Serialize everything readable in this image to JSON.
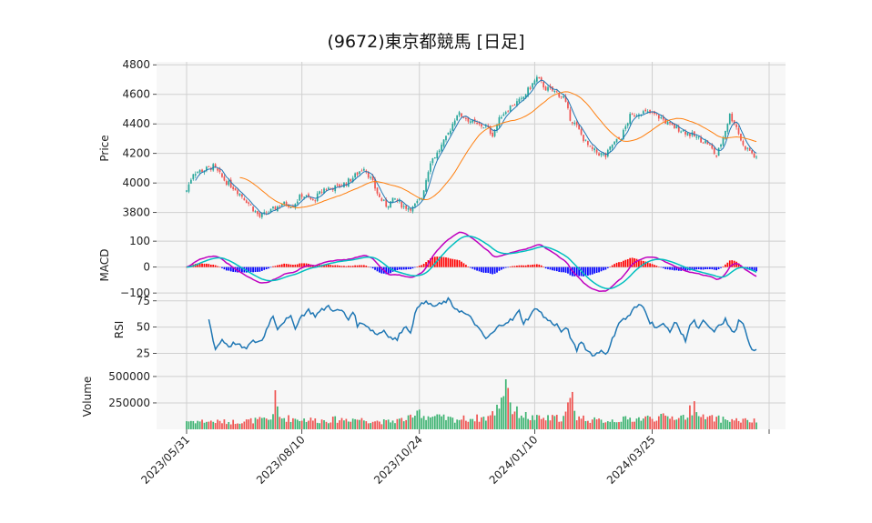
{
  "chart_data": {
    "type": "candlestick",
    "title": "(9672)東京都競馬 [日足]",
    "colors": {
      "up": "#26a69a",
      "down": "#ef5350",
      "sma_short": "#1f77b4",
      "sma_long": "#ff7f0e",
      "macd": "#bf00bf",
      "signal": "#00bfbf",
      "hist_pos": "#ff0000",
      "hist_neg": "#0000ff",
      "rsi": "#1f77b4",
      "panel_bg": "#f7f7f7",
      "grid": "#d0d0d0"
    },
    "x_ticks": [
      "2023/05/31",
      "2023/08/10",
      "2023/10/24",
      "2024/01/10",
      "2024/03/25"
    ],
    "panels": {
      "price": {
        "ylabel": "Price",
        "ylim": [
          3650,
          4820
        ],
        "ticks": [
          "3800",
          "4000",
          "4200",
          "4400",
          "4600",
          "4800"
        ]
      },
      "macd": {
        "ylabel": "MACD",
        "ylim": [
          -110,
          125
        ],
        "ticks": [
          "−100",
          "0",
          "100"
        ]
      },
      "rsi": {
        "ylabel": "RSI",
        "ylim": [
          15,
          80
        ],
        "ticks": [
          "25",
          "50",
          "75"
        ]
      },
      "volume": {
        "ylabel": "Volume",
        "ylim": [
          0,
          620000
        ],
        "ticks": [
          "250000",
          "500000"
        ]
      }
    },
    "close_anchors": [
      [
        0,
        3950
      ],
      [
        3,
        4070
      ],
      [
        8,
        4090
      ],
      [
        12,
        4110
      ],
      [
        17,
        4020
      ],
      [
        22,
        3960
      ],
      [
        27,
        3880
      ],
      [
        33,
        3770
      ],
      [
        38,
        3810
      ],
      [
        43,
        3860
      ],
      [
        48,
        3850
      ],
      [
        52,
        3920
      ],
      [
        57,
        3880
      ],
      [
        62,
        3960
      ],
      [
        67,
        3970
      ],
      [
        72,
        4000
      ],
      [
        76,
        4050
      ],
      [
        80,
        4110
      ],
      [
        84,
        4000
      ],
      [
        87,
        3900
      ],
      [
        90,
        3850
      ],
      [
        94,
        3890
      ],
      [
        98,
        3840
      ],
      [
        102,
        3830
      ],
      [
        106,
        3900
      ],
      [
        110,
        4150
      ],
      [
        113,
        4200
      ],
      [
        117,
        4300
      ],
      [
        122,
        4470
      ],
      [
        125,
        4450
      ],
      [
        130,
        4400
      ],
      [
        135,
        4380
      ],
      [
        138,
        4330
      ],
      [
        142,
        4460
      ],
      [
        147,
        4530
      ],
      [
        151,
        4560
      ],
      [
        155,
        4650
      ],
      [
        158,
        4710
      ],
      [
        162,
        4640
      ],
      [
        166,
        4620
      ],
      [
        170,
        4580
      ],
      [
        173,
        4440
      ],
      [
        176,
        4380
      ],
      [
        179,
        4300
      ],
      [
        182,
        4230
      ],
      [
        186,
        4200
      ],
      [
        189,
        4180
      ],
      [
        192,
        4260
      ],
      [
        196,
        4310
      ],
      [
        200,
        4450
      ],
      [
        205,
        4480
      ],
      [
        210,
        4470
      ],
      [
        214,
        4440
      ],
      [
        218,
        4390
      ],
      [
        223,
        4360
      ],
      [
        227,
        4330
      ],
      [
        231,
        4300
      ],
      [
        235,
        4270
      ],
      [
        239,
        4180
      ],
      [
        242,
        4310
      ],
      [
        245,
        4460
      ],
      [
        248,
        4380
      ],
      [
        251,
        4250
      ],
      [
        254,
        4220
      ],
      [
        257,
        4160
      ]
    ],
    "rsi_anchors": [
      [
        10,
        57
      ],
      [
        13,
        29
      ],
      [
        16,
        38
      ],
      [
        19,
        32
      ],
      [
        22,
        35
      ],
      [
        26,
        29
      ],
      [
        30,
        36
      ],
      [
        34,
        37
      ],
      [
        37,
        53
      ],
      [
        39,
        61
      ],
      [
        41,
        49
      ],
      [
        44,
        56
      ],
      [
        47,
        59
      ],
      [
        49,
        50
      ],
      [
        52,
        61
      ],
      [
        55,
        66
      ],
      [
        58,
        61
      ],
      [
        61,
        66
      ],
      [
        64,
        70
      ],
      [
        67,
        65
      ],
      [
        70,
        66
      ],
      [
        73,
        57
      ],
      [
        75,
        66
      ],
      [
        77,
        52
      ],
      [
        80,
        54
      ],
      [
        83,
        48
      ],
      [
        86,
        43
      ],
      [
        89,
        47
      ],
      [
        92,
        40
      ],
      [
        95,
        38
      ],
      [
        98,
        51
      ],
      [
        101,
        46
      ],
      [
        103,
        62
      ],
      [
        106,
        75
      ],
      [
        109,
        72
      ],
      [
        112,
        70
      ],
      [
        115,
        72
      ],
      [
        118,
        76
      ],
      [
        120,
        70
      ],
      [
        123,
        66
      ],
      [
        126,
        62
      ],
      [
        129,
        57
      ],
      [
        132,
        47
      ],
      [
        135,
        39
      ],
      [
        138,
        44
      ],
      [
        141,
        51
      ],
      [
        144,
        55
      ],
      [
        147,
        57
      ],
      [
        150,
        65
      ],
      [
        152,
        54
      ],
      [
        155,
        61
      ],
      [
        158,
        69
      ],
      [
        161,
        60
      ],
      [
        164,
        55
      ],
      [
        167,
        52
      ],
      [
        169,
        46
      ],
      [
        172,
        48
      ],
      [
        174,
        35
      ],
      [
        176,
        28
      ],
      [
        178,
        37
      ],
      [
        181,
        27
      ],
      [
        184,
        23
      ],
      [
        187,
        28
      ],
      [
        190,
        25
      ],
      [
        192,
        38
      ],
      [
        195,
        55
      ],
      [
        198,
        58
      ],
      [
        200,
        62
      ],
      [
        202,
        68
      ],
      [
        205,
        71
      ],
      [
        207,
        66
      ],
      [
        209,
        55
      ],
      [
        212,
        50
      ],
      [
        215,
        52
      ],
      [
        218,
        47
      ],
      [
        221,
        55
      ],
      [
        223,
        44
      ],
      [
        225,
        38
      ],
      [
        227,
        52
      ],
      [
        229,
        55
      ],
      [
        231,
        48
      ],
      [
        233,
        55
      ],
      [
        235,
        52
      ],
      [
        237,
        46
      ],
      [
        239,
        48
      ],
      [
        241,
        53
      ],
      [
        243,
        57
      ],
      [
        245,
        49
      ],
      [
        247,
        44
      ],
      [
        249,
        55
      ],
      [
        251,
        52
      ],
      [
        253,
        40
      ],
      [
        255,
        29
      ]
    ],
    "volume_anchors": [
      [
        0,
        80000
      ],
      [
        20,
        70000
      ],
      [
        38,
        95000
      ],
      [
        40,
        280000
      ],
      [
        42,
        110000
      ],
      [
        60,
        85000
      ],
      [
        75,
        100000
      ],
      [
        90,
        70000
      ],
      [
        103,
        110000
      ],
      [
        104,
        260000
      ],
      [
        106,
        130000
      ],
      [
        120,
        95000
      ],
      [
        135,
        110000
      ],
      [
        138,
        140000
      ],
      [
        140,
        200000
      ],
      [
        143,
        360000
      ],
      [
        144,
        560000
      ],
      [
        145,
        380000
      ],
      [
        147,
        180000
      ],
      [
        155,
        110000
      ],
      [
        160,
        100000
      ],
      [
        170,
        110000
      ],
      [
        174,
        300000
      ],
      [
        176,
        120000
      ],
      [
        185,
        80000
      ],
      [
        195,
        90000
      ],
      [
        210,
        110000
      ],
      [
        225,
        120000
      ],
      [
        230,
        250000
      ],
      [
        232,
        110000
      ],
      [
        245,
        90000
      ],
      [
        257,
        75000
      ]
    ],
    "n_points": 258,
    "x_tick_index": [
      0,
      52,
      105,
      157,
      210
    ],
    "sma_short_window": 5,
    "sma_long_window": 25
  }
}
